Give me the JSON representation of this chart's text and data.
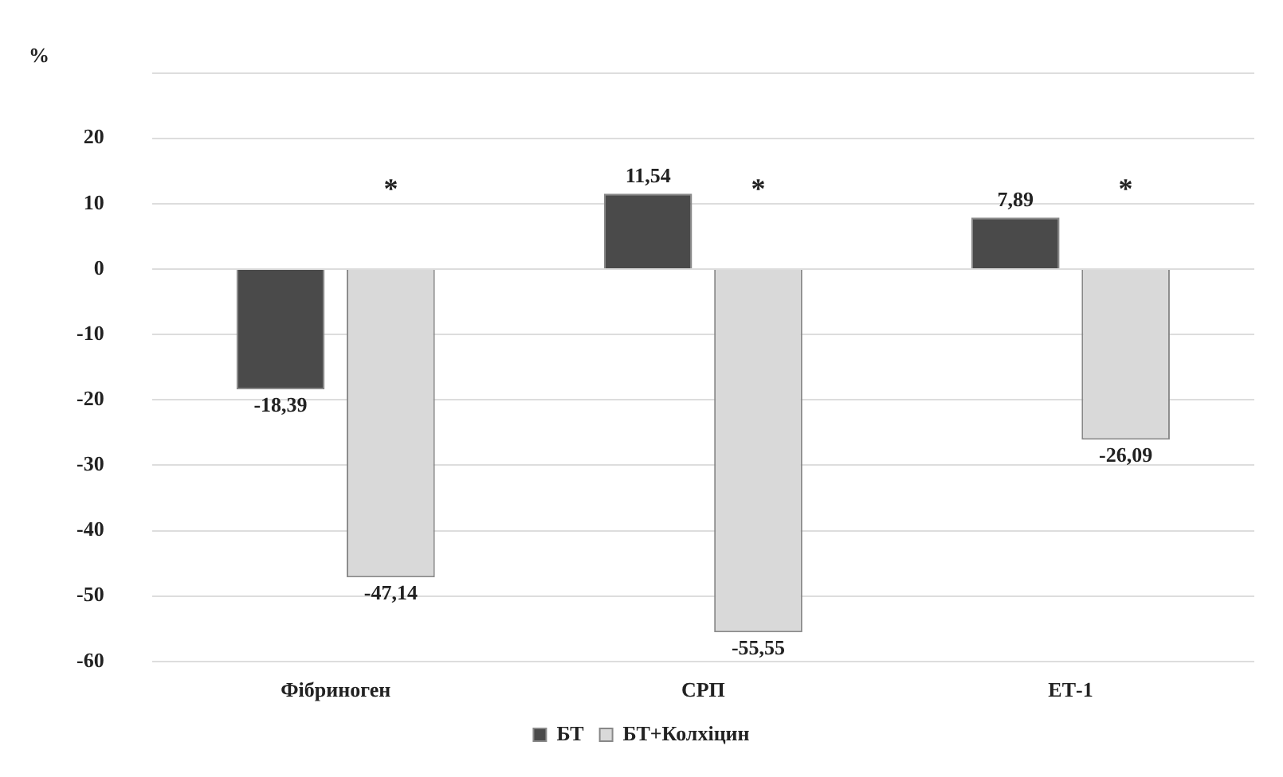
{
  "chart_data": {
    "type": "bar",
    "ylabel": "%",
    "categories": [
      "Фібриноген",
      "СРП",
      "ЕТ-1"
    ],
    "series": [
      {
        "name": "БТ",
        "color": "#4a4a4a",
        "values": [
          -18.39,
          11.54,
          7.89
        ],
        "value_labels": [
          "-18,39",
          "11,54",
          "7,89"
        ]
      },
      {
        "name": "БТ+Колхіцин",
        "color": "#d9d9d9",
        "values": [
          -47.14,
          -55.55,
          -26.09
        ],
        "value_labels": [
          "-47,14",
          "-55,55",
          "-26,09"
        ]
      }
    ],
    "ylim": [
      -60,
      30
    ],
    "yticks": [
      -60,
      -50,
      -40,
      -30,
      -20,
      -10,
      0,
      10,
      20,
      {
        "value": 30,
        "label": null
      }
    ],
    "grid": "y",
    "legend": "bottom",
    "annotations": [
      "*",
      "*",
      "*"
    ]
  }
}
